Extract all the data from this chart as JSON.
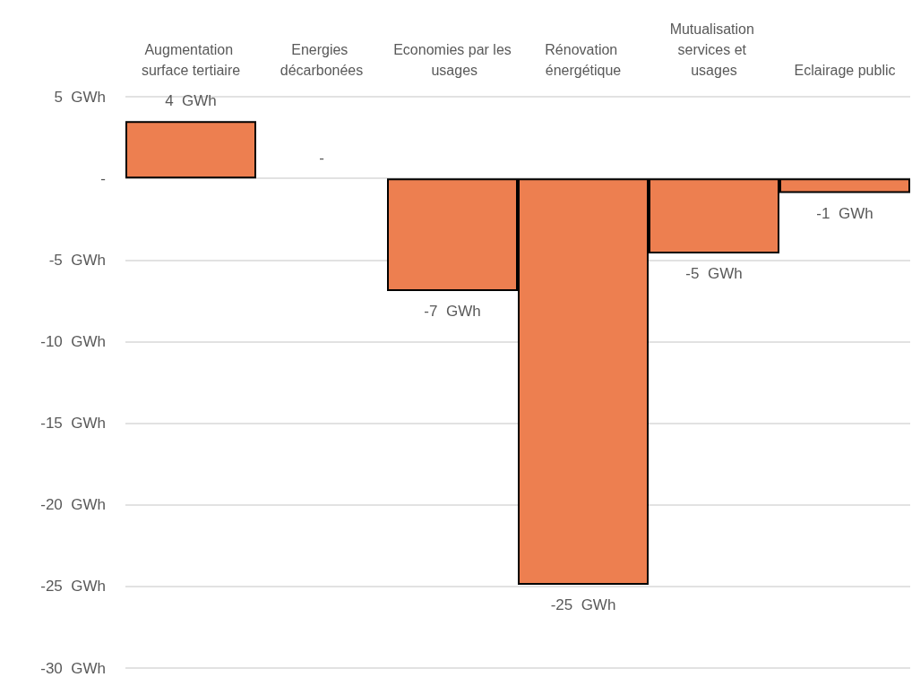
{
  "chart_data": {
    "type": "bar",
    "categories": [
      "Augmentation surface tertiaire",
      "Energies décarbonées",
      "Economies par les usages",
      "Rénovation énergétique",
      "Mutualisation services et usages",
      "Eclairage public"
    ],
    "values": [
      3.5,
      0,
      -6.9,
      -24.9,
      -4.6,
      -0.9
    ],
    "value_labels": [
      "4  GWh",
      "-",
      "-7  GWh",
      "-25  GWh",
      "-5  GWh",
      "-1  GWh"
    ],
    "color": "#ed7f50",
    "ylim": [
      -30,
      5
    ],
    "yticks": [
      {
        "value": 5,
        "label": "5  GWh"
      },
      {
        "value": 0,
        "label": "-"
      },
      {
        "value": -5,
        "label": "-5  GWh"
      },
      {
        "value": -10,
        "label": "-10  GWh"
      },
      {
        "value": -15,
        "label": "-15  GWh"
      },
      {
        "value": -20,
        "label": "-20  GWh"
      },
      {
        "value": -25,
        "label": "-25  GWh"
      },
      {
        "value": -30,
        "label": "-30  GWh"
      }
    ],
    "grid": "y"
  }
}
